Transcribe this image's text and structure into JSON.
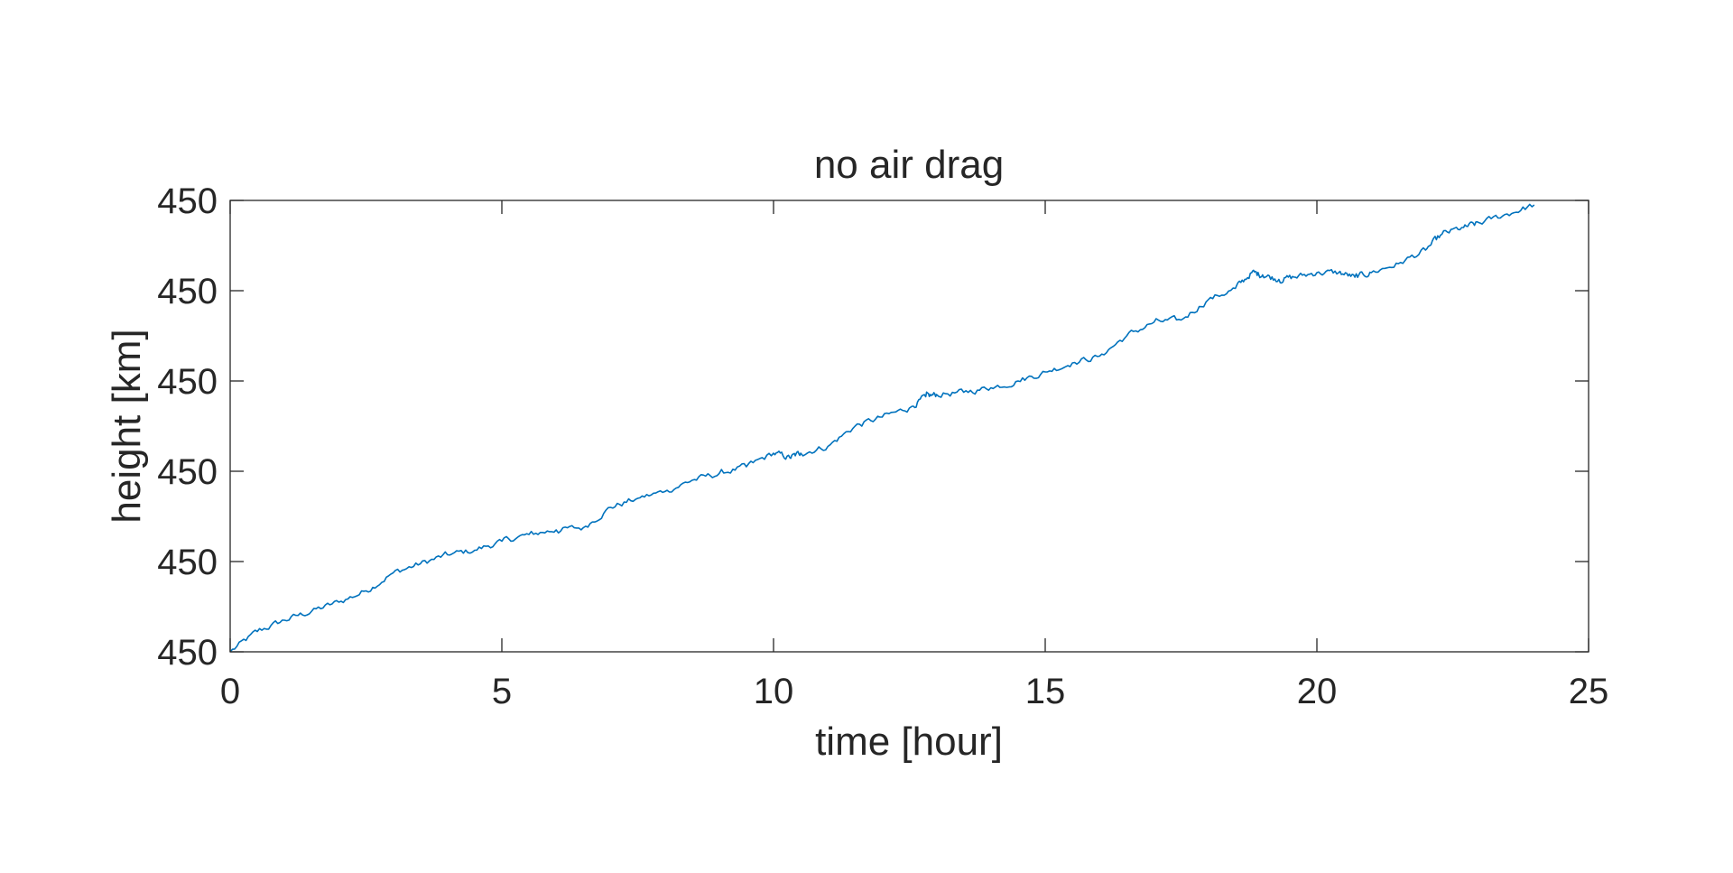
{
  "chart_data": {
    "type": "line",
    "title": "no air drag",
    "xlabel": "time [hour]",
    "ylabel": "height [km]",
    "xlim": [
      0,
      25
    ],
    "ylim": [
      0,
      1
    ],
    "x_ticks": [
      0,
      5,
      10,
      15,
      20,
      25
    ],
    "y_ticks": [
      0,
      0.2,
      0.4,
      0.6,
      0.8,
      1.0
    ],
    "y_tick_labels": [
      "450",
      "450",
      "450",
      "450",
      "450",
      "450"
    ],
    "grid": false,
    "line_color": "#0072BD",
    "x": [
      0,
      0.5,
      1.0,
      1.5,
      2.0,
      2.5,
      3.0,
      3.5,
      4.0,
      4.5,
      5.0,
      5.5,
      6.0,
      6.5,
      7.0,
      7.5,
      8.0,
      8.5,
      9.0,
      9.5,
      10.0,
      10.3,
      10.5,
      11.0,
      11.5,
      12.0,
      12.5,
      12.8,
      13.0,
      13.5,
      14.0,
      14.5,
      15.0,
      15.5,
      16.0,
      16.5,
      17.0,
      17.5,
      18.0,
      18.5,
      18.8,
      19.0,
      19.3,
      19.6,
      20.0,
      20.4,
      20.7,
      21.0,
      21.5,
      22.0,
      22.3,
      22.7,
      23.0,
      23.5,
      24.0
    ],
    "values": [
      0.0,
      0.045,
      0.07,
      0.09,
      0.11,
      0.135,
      0.175,
      0.195,
      0.215,
      0.225,
      0.245,
      0.26,
      0.27,
      0.275,
      0.32,
      0.34,
      0.355,
      0.38,
      0.395,
      0.41,
      0.44,
      0.43,
      0.44,
      0.455,
      0.5,
      0.52,
      0.54,
      0.565,
      0.57,
      0.575,
      0.585,
      0.6,
      0.62,
      0.64,
      0.655,
      0.7,
      0.73,
      0.735,
      0.78,
      0.805,
      0.84,
      0.835,
      0.825,
      0.83,
      0.84,
      0.84,
      0.83,
      0.84,
      0.86,
      0.89,
      0.925,
      0.94,
      0.95,
      0.97,
      0.99
    ]
  }
}
